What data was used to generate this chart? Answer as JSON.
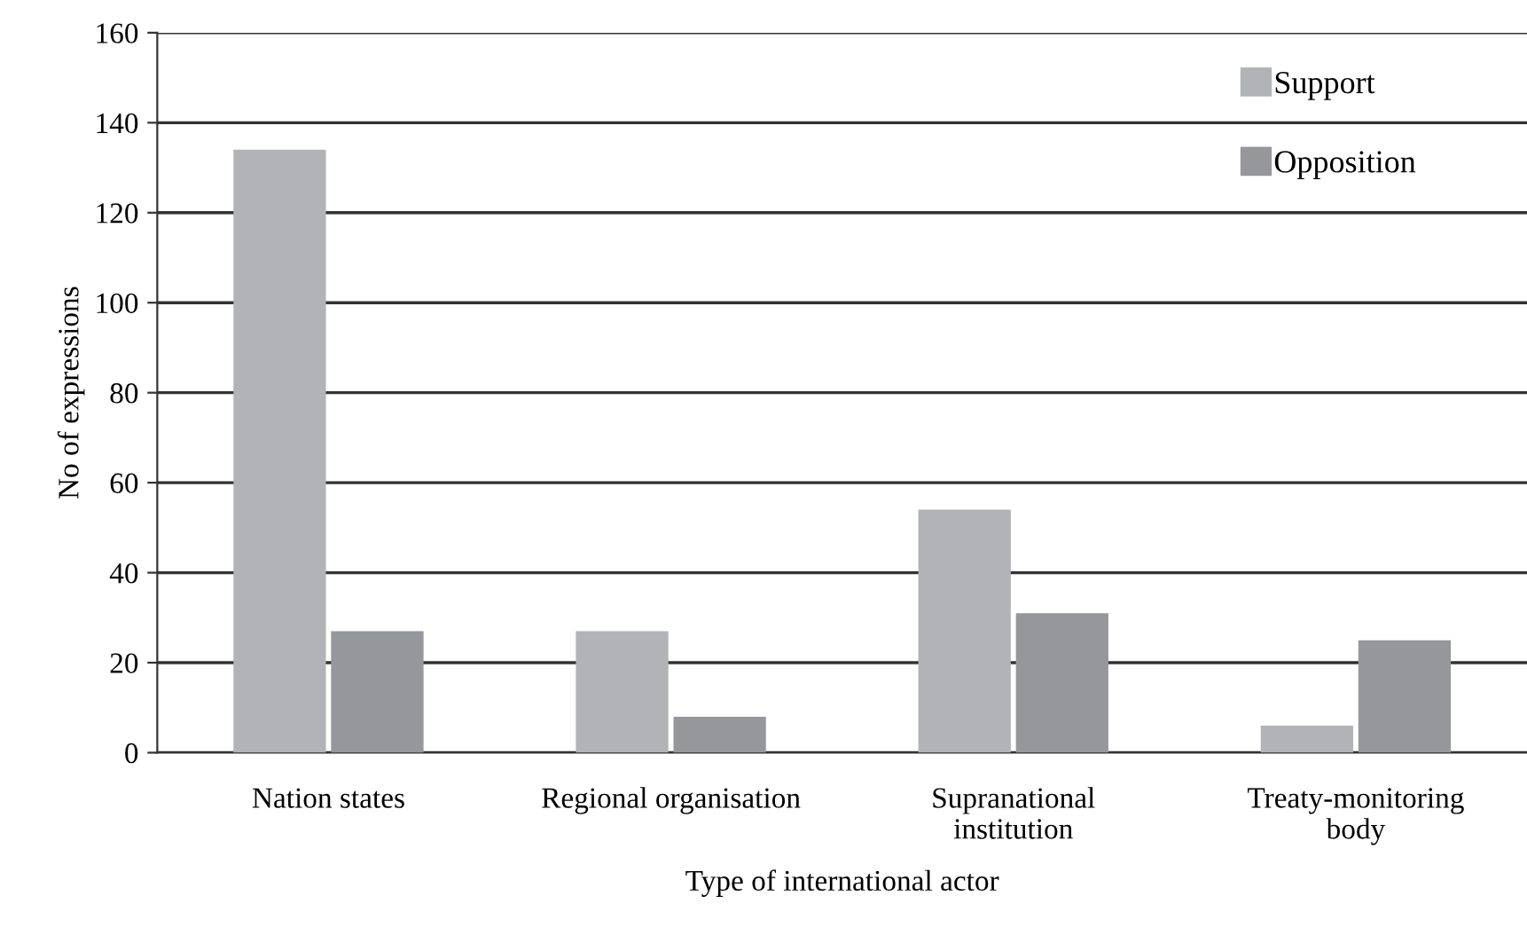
{
  "chart_data": {
    "type": "bar",
    "xlabel": "Type of international actor",
    "ylabel": "No of expressions",
    "categories": [
      "Nation states",
      "Regional organisation",
      "Supranational\ninstitution",
      "Treaty-monitoring\nbody"
    ],
    "series": [
      {
        "name": "Support",
        "color": "#b2b3b6",
        "values": [
          134,
          27,
          54,
          6
        ]
      },
      {
        "name": "Opposition",
        "color": "#96979b",
        "values": [
          27,
          8,
          31,
          25
        ]
      }
    ],
    "ylim": [
      0,
      160
    ],
    "yticks": [
      0,
      20,
      40,
      60,
      80,
      100,
      120,
      140,
      160
    ],
    "grid": "y",
    "legend": "top right"
  }
}
